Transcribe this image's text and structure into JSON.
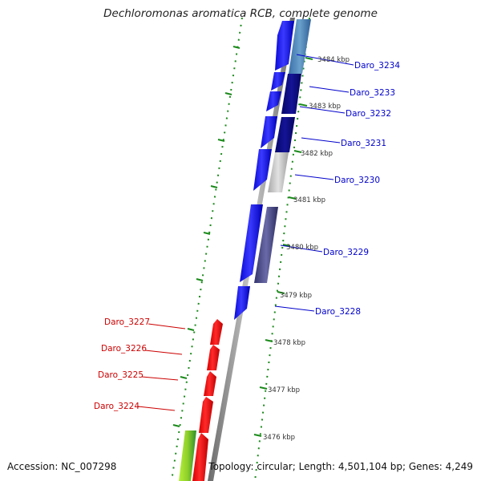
{
  "title": "Dechloromonas aromatica RCB, complete genome",
  "footer": {
    "accession": "Accession: NC_007298",
    "summary": "Topology: circular; Length: 4,501,104 bp; Genes: 4,249"
  },
  "kbp_ticks": [
    "3484 kbp",
    "3483 kbp",
    "3482 kbp",
    "3481 kbp",
    "3480 kbp",
    "3479 kbp",
    "3478 kbp",
    "3477 kbp",
    "3476 kbp"
  ],
  "genes_forward": [
    "Daro_3234",
    "Daro_3233",
    "Daro_3232",
    "Daro_3231",
    "Daro_3230",
    "Daro_3229",
    "Daro_3228"
  ],
  "genes_reverse": [
    "Daro_3227",
    "Daro_3226",
    "Daro_3225",
    "Daro_3224"
  ],
  "colors": {
    "forward_gene": "#1a1aff",
    "reverse_gene": "#ff0000",
    "forward_label": "#0000cc",
    "reverse_label": "#cc0000",
    "backbone": "#8c8c8c",
    "tick_marks": "#1a8a1a",
    "steelblue_feature": "#4a84b8",
    "navy_feature": "#0a0a80",
    "grey_feature": "#c4c4c4",
    "slate_feature": "#4a4a8c",
    "green_feature": "#33aa33",
    "lime_feature": "#99dd33"
  }
}
